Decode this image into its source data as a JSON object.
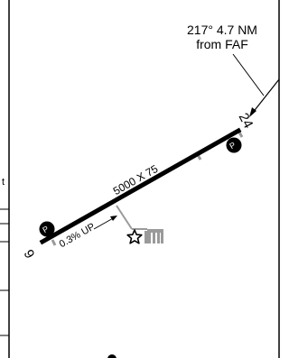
{
  "chart": {
    "frame_left_fragment": "t",
    "faf_note": {
      "line1": "217° 4.7 NM",
      "line2": "from FAF"
    },
    "runway": {
      "dimensions": "5000 X 75",
      "gradient": "0.3% UP",
      "end_north_number": "24",
      "end_south_number": "6",
      "papi_symbol": "P"
    }
  },
  "colors": {
    "ink": "#000000",
    "terrain_gray": "#9a9a9a",
    "paper": "#ffffff"
  },
  "icons": {
    "airport_beacon": "star-outline",
    "buildings": "hangar-block",
    "spot": "filled-dot"
  }
}
